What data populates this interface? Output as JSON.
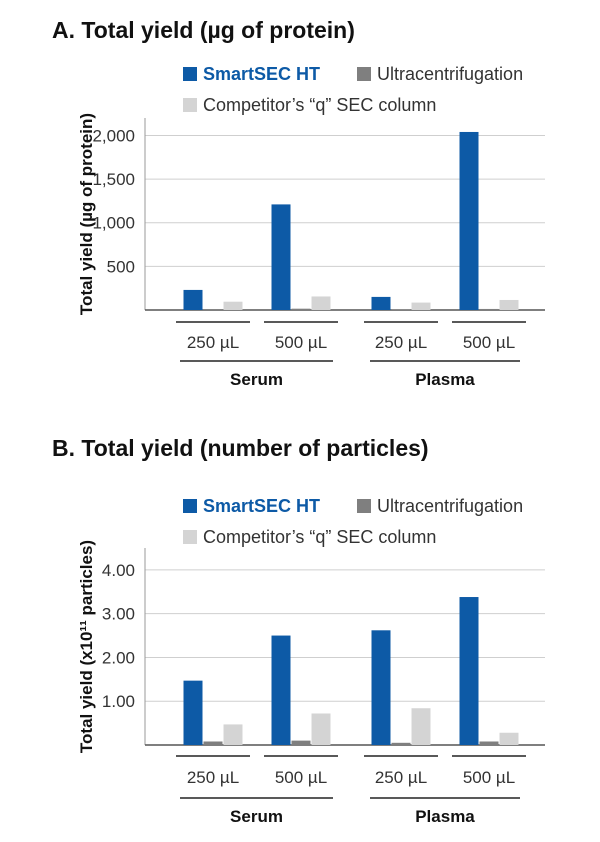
{
  "chart_data": [
    {
      "type": "bar",
      "title": "A. Total yield (µg of protein)",
      "ylabel": "Total yield (µg of protein)",
      "ylim": [
        0,
        2200
      ],
      "yticks": [
        500,
        1000,
        1500,
        2000
      ],
      "ytick_labels": [
        "500",
        "1,000",
        "1,500",
        "2,000"
      ],
      "grid": true,
      "legend_position": "top",
      "categories": [
        "250 µL",
        "500 µL",
        "250 µL",
        "500 µL"
      ],
      "groups": [
        {
          "label": "Serum",
          "categories": [
            "250 µL",
            "500 µL"
          ]
        },
        {
          "label": "Plasma",
          "categories": [
            "250 µL",
            "500 µL"
          ]
        }
      ],
      "series": [
        {
          "name": "SmartSEC HT",
          "color": "#0d5aa6",
          "values": [
            230,
            1210,
            150,
            2040
          ]
        },
        {
          "name": "Ultracentrifugation",
          "color": "#7f7f7f",
          "values": [
            10,
            15,
            8,
            12
          ]
        },
        {
          "name": "Competitor’s “q” SEC column",
          "color": "#d4d4d4",
          "values": [
            95,
            155,
            85,
            115
          ]
        }
      ]
    },
    {
      "type": "bar",
      "title": "B. Total yield (number of particles)",
      "ylabel": "Total yield (x10¹¹ particles)",
      "ylim": [
        0,
        4.5
      ],
      "yticks": [
        1,
        2,
        3,
        4
      ],
      "ytick_labels": [
        "1.00",
        "2.00",
        "3.00",
        "4.00"
      ],
      "grid": true,
      "legend_position": "top",
      "categories": [
        "250 µL",
        "500 µL",
        "250 µL",
        "500 µL"
      ],
      "groups": [
        {
          "label": "Serum",
          "categories": [
            "250 µL",
            "500 µL"
          ]
        },
        {
          "label": "Plasma",
          "categories": [
            "250 µL",
            "500 µL"
          ]
        }
      ],
      "series": [
        {
          "name": "SmartSEC HT",
          "color": "#0d5aa6",
          "values": [
            1.47,
            2.5,
            2.62,
            3.38
          ]
        },
        {
          "name": "Ultracentrifugation",
          "color": "#7f7f7f",
          "values": [
            0.08,
            0.1,
            0.05,
            0.08
          ]
        },
        {
          "name": "Competitor’s “q” SEC column",
          "color": "#d4d4d4",
          "values": [
            0.47,
            0.72,
            0.84,
            0.28
          ]
        }
      ]
    }
  ]
}
